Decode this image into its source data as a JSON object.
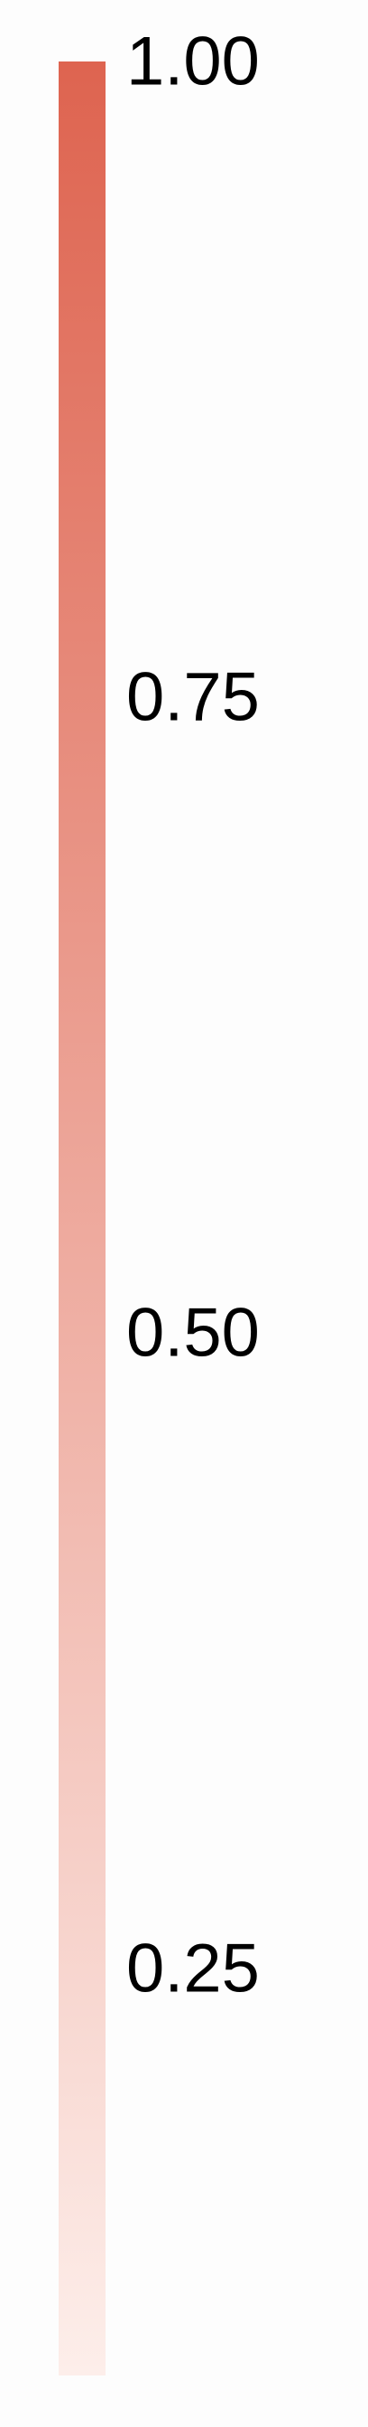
{
  "chart_data": {
    "type": "heatmap",
    "element": "colorbar",
    "orientation": "vertical",
    "range": [
      0.09,
      1.0
    ],
    "ticks": [
      1.0,
      0.75,
      0.5,
      0.25
    ],
    "tick_labels": [
      "1.00",
      "0.75",
      "0.50",
      "0.25"
    ],
    "colormap": {
      "low": "#fdeeea",
      "high": "#de6450"
    }
  }
}
